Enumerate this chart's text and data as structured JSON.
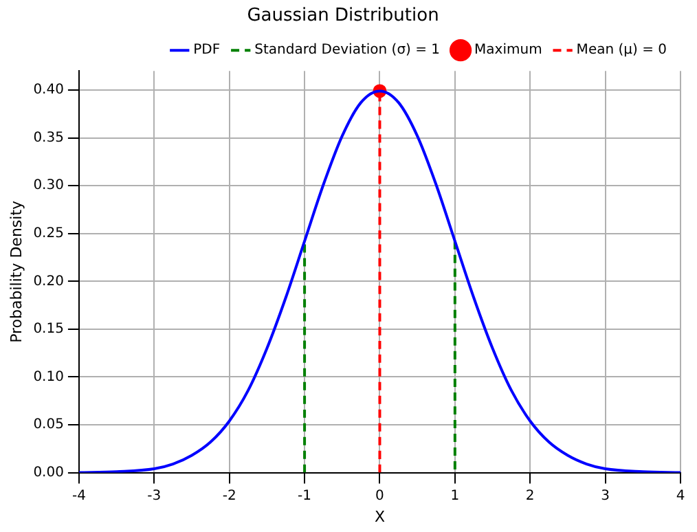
{
  "chart_data": {
    "type": "line",
    "title": "Gaussian Distribution",
    "xlabel": "X",
    "ylabel": "Probability Density",
    "xlim": [
      -4,
      4
    ],
    "ylim": [
      0,
      0.42
    ],
    "xticks": [
      -4,
      -3,
      -2,
      -1,
      0,
      1,
      2,
      3,
      4
    ],
    "yticks": [
      {
        "value": 0,
        "label": "0.00"
      },
      {
        "value": 0.05,
        "label": "0.05"
      },
      {
        "value": 0.1,
        "label": "0.10"
      },
      {
        "value": 0.15,
        "label": "0.15"
      },
      {
        "value": 0.2,
        "label": "0.20"
      },
      {
        "value": 0.25,
        "label": "0.25"
      },
      {
        "value": 0.3,
        "label": "0.30"
      },
      {
        "value": 0.35,
        "label": "0.35"
      },
      {
        "value": 0.4,
        "label": "0.40"
      }
    ],
    "grid": true,
    "legend": "top right",
    "series": [
      {
        "name": "PDF",
        "type": "line",
        "color": "#0000ff",
        "line_style": "solid",
        "marker": "none",
        "x": [
          -4,
          -3.5,
          -3,
          -2.75,
          -2.5,
          -2.25,
          -2,
          -1.75,
          -1.5,
          -1.25,
          -1,
          -0.75,
          -0.5,
          -0.25,
          0,
          0.25,
          0.5,
          0.75,
          1,
          1.25,
          1.5,
          1.75,
          2,
          2.25,
          2.5,
          2.75,
          3,
          3.5,
          4
        ],
        "values": [
          0.0,
          0.001,
          0.004,
          0.009,
          0.018,
          0.032,
          0.054,
          0.086,
          0.13,
          0.183,
          0.242,
          0.301,
          0.352,
          0.387,
          0.399,
          0.387,
          0.352,
          0.301,
          0.242,
          0.183,
          0.13,
          0.086,
          0.054,
          0.032,
          0.018,
          0.009,
          0.004,
          0.001,
          0.0
        ]
      },
      {
        "name": "Standard Deviation (σ) = 1",
        "type": "line",
        "color": "#008000",
        "line_style": "dashed",
        "marker": "none",
        "x": [
          -1,
          -1,
          0,
          1,
          1
        ],
        "values": [
          0,
          0.242,
          null,
          0.242,
          0
        ]
      },
      {
        "name": "Maximum",
        "type": "scatter",
        "color": "#ff0000",
        "marker": "circle",
        "x": [
          0
        ],
        "values": [
          0.399
        ]
      },
      {
        "name": "Mean (μ) = 0",
        "type": "line",
        "color": "#ff0000",
        "line_style": "dashed",
        "marker": "none",
        "x": [
          0,
          0
        ],
        "values": [
          0,
          0.399
        ]
      }
    ]
  }
}
